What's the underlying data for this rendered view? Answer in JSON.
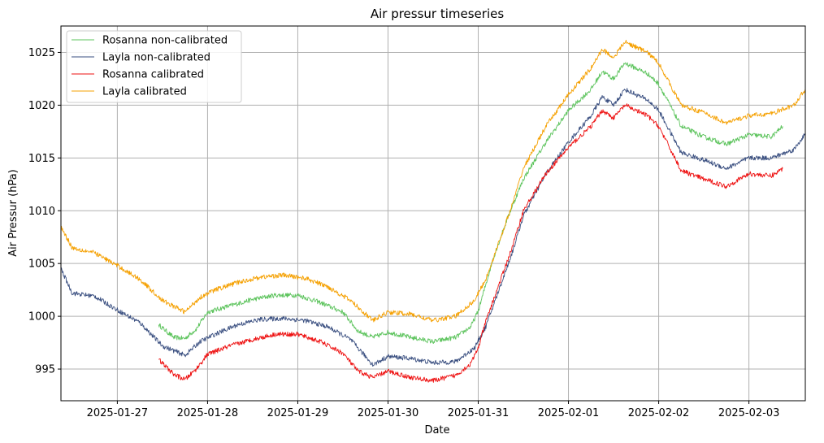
{
  "chart_data": {
    "type": "line",
    "title": "Air pressur timeseries",
    "xlabel": "Date",
    "ylabel": "Air Pressur (hPa)",
    "xlim": [
      "2025-01-26 09:00",
      "2025-02-03 15:00"
    ],
    "ylim": [
      992,
      1027.5
    ],
    "xticks": [
      "2025-01-27",
      "2025-01-28",
      "2025-01-29",
      "2025-01-30",
      "2025-01-31",
      "2025-02-01",
      "2025-02-02",
      "2025-02-03"
    ],
    "yticks": [
      995,
      1000,
      1005,
      1010,
      1015,
      1020,
      1025
    ],
    "grid": true,
    "legend_position": "top-left",
    "series": [
      {
        "name": "Rosanna non-calibrated",
        "color": "#5ec45e",
        "points": [
          [
            "2025-01-27 11:00",
            999.2
          ],
          [
            "2025-01-27 15:00",
            998.0
          ],
          [
            "2025-01-27 18:00",
            997.9
          ],
          [
            "2025-01-27 21:00",
            998.8
          ],
          [
            "2025-01-28 00:00",
            1000.4
          ],
          [
            "2025-01-28 06:00",
            1001.0
          ],
          [
            "2025-01-28 12:00",
            1001.6
          ],
          [
            "2025-01-28 18:00",
            1002.0
          ],
          [
            "2025-01-29 00:00",
            1002.0
          ],
          [
            "2025-01-29 06:00",
            1001.3
          ],
          [
            "2025-01-29 12:00",
            1000.4
          ],
          [
            "2025-01-29 16:00",
            998.6
          ],
          [
            "2025-01-29 20:00",
            998.0
          ],
          [
            "2025-01-30 00:00",
            998.5
          ],
          [
            "2025-01-30 06:00",
            998.0
          ],
          [
            "2025-01-30 12:00",
            997.6
          ],
          [
            "2025-01-30 18:00",
            998.0
          ],
          [
            "2025-01-30 22:00",
            999.0
          ],
          [
            "2025-01-31 00:00",
            1000.5
          ],
          [
            "2025-01-31 02:00",
            1003.0
          ],
          [
            "2025-01-31 04:00",
            1005.5
          ],
          [
            "2025-01-31 08:00",
            1009.5
          ],
          [
            "2025-01-31 12:00",
            1013.0
          ],
          [
            "2025-01-31 18:00",
            1016.5
          ],
          [
            "2025-02-01 00:00",
            1019.5
          ],
          [
            "2025-02-01 06:00",
            1021.5
          ],
          [
            "2025-02-01 09:00",
            1023.2
          ],
          [
            "2025-02-01 12:00",
            1022.5
          ],
          [
            "2025-02-01 15:00",
            1024.0
          ],
          [
            "2025-02-01 21:00",
            1023.0
          ],
          [
            "2025-02-02 00:00",
            1022.0
          ],
          [
            "2025-02-02 06:00",
            1018.0
          ],
          [
            "2025-02-02 12:00",
            1017.0
          ],
          [
            "2025-02-02 18:00",
            1016.3
          ],
          [
            "2025-02-03 00:00",
            1017.2
          ],
          [
            "2025-02-03 06:00",
            1017.0
          ],
          [
            "2025-02-03 09:00",
            1018.0
          ]
        ]
      },
      {
        "name": "Layla non-calibrated",
        "color": "#3a4f80",
        "points": [
          [
            "2025-01-26 09:00",
            1004.5
          ],
          [
            "2025-01-26 12:00",
            1002.2
          ],
          [
            "2025-01-26 18:00",
            1001.9
          ],
          [
            "2025-01-27 00:00",
            1000.6
          ],
          [
            "2025-01-27 06:00",
            999.4
          ],
          [
            "2025-01-27 12:00",
            997.2
          ],
          [
            "2025-01-27 18:00",
            996.3
          ],
          [
            "2025-01-27 22:00",
            997.6
          ],
          [
            "2025-01-28 02:00",
            998.3
          ],
          [
            "2025-01-28 08:00",
            999.2
          ],
          [
            "2025-01-28 14:00",
            999.7
          ],
          [
            "2025-01-28 20:00",
            999.8
          ],
          [
            "2025-01-29 02:00",
            999.6
          ],
          [
            "2025-01-29 08:00",
            999.0
          ],
          [
            "2025-01-29 14:00",
            997.8
          ],
          [
            "2025-01-29 20:00",
            995.4
          ],
          [
            "2025-01-30 00:00",
            996.2
          ],
          [
            "2025-01-30 06:00",
            996.0
          ],
          [
            "2025-01-30 12:00",
            995.6
          ],
          [
            "2025-01-30 18:00",
            995.7
          ],
          [
            "2025-01-30 23:00",
            997.0
          ],
          [
            "2025-01-31 02:00",
            999.0
          ],
          [
            "2025-01-31 05:00",
            1002.0
          ],
          [
            "2025-01-31 09:00",
            1006.0
          ],
          [
            "2025-01-31 12:00",
            1009.5
          ],
          [
            "2025-01-31 18:00",
            1013.5
          ],
          [
            "2025-02-01 00:00",
            1016.5
          ],
          [
            "2025-02-01 06:00",
            1019.0
          ],
          [
            "2025-02-01 09:00",
            1020.8
          ],
          [
            "2025-02-01 12:00",
            1020.0
          ],
          [
            "2025-02-01 15:00",
            1021.5
          ],
          [
            "2025-02-01 21:00",
            1020.5
          ],
          [
            "2025-02-02 00:00",
            1019.5
          ],
          [
            "2025-02-02 06:00",
            1015.5
          ],
          [
            "2025-02-02 12:00",
            1014.8
          ],
          [
            "2025-02-02 18:00",
            1014.0
          ],
          [
            "2025-02-03 00:00",
            1015.0
          ],
          [
            "2025-02-03 06:00",
            1015.0
          ],
          [
            "2025-02-03 12:00",
            1015.8
          ],
          [
            "2025-02-03 15:00",
            1017.3
          ]
        ]
      },
      {
        "name": "Rosanna calibrated",
        "color": "#ee1111",
        "points": [
          [
            "2025-01-27 11:00",
            995.9
          ],
          [
            "2025-01-27 15:00",
            994.5
          ],
          [
            "2025-01-27 18:00",
            994.0
          ],
          [
            "2025-01-27 21:00",
            995.0
          ],
          [
            "2025-01-28 00:00",
            996.4
          ],
          [
            "2025-01-28 06:00",
            997.2
          ],
          [
            "2025-01-28 12:00",
            997.8
          ],
          [
            "2025-01-28 18:00",
            998.3
          ],
          [
            "2025-01-29 00:00",
            998.3
          ],
          [
            "2025-01-29 06:00",
            997.6
          ],
          [
            "2025-01-29 12:00",
            996.5
          ],
          [
            "2025-01-29 16:00",
            994.8
          ],
          [
            "2025-01-29 20:00",
            994.2
          ],
          [
            "2025-01-30 00:00",
            994.8
          ],
          [
            "2025-01-30 06:00",
            994.2
          ],
          [
            "2025-01-30 12:00",
            993.9
          ],
          [
            "2025-01-30 18:00",
            994.4
          ],
          [
            "2025-01-30 22:00",
            995.5
          ],
          [
            "2025-01-31 00:00",
            997.0
          ],
          [
            "2025-01-31 02:00",
            999.5
          ],
          [
            "2025-01-31 05:00",
            1002.5
          ],
          [
            "2025-01-31 09:00",
            1006.5
          ],
          [
            "2025-01-31 12:00",
            1010.0
          ],
          [
            "2025-01-31 18:00",
            1013.5
          ],
          [
            "2025-02-01 00:00",
            1016.0
          ],
          [
            "2025-02-01 06:00",
            1018.0
          ],
          [
            "2025-02-01 09:00",
            1019.5
          ],
          [
            "2025-02-01 12:00",
            1018.8
          ],
          [
            "2025-02-01 15:00",
            1020.0
          ],
          [
            "2025-02-01 21:00",
            1019.0
          ],
          [
            "2025-02-02 00:00",
            1018.0
          ],
          [
            "2025-02-02 06:00",
            1013.8
          ],
          [
            "2025-02-02 12:00",
            1013.0
          ],
          [
            "2025-02-02 18:00",
            1012.3
          ],
          [
            "2025-02-03 00:00",
            1013.5
          ],
          [
            "2025-02-03 06:00",
            1013.3
          ],
          [
            "2025-02-03 09:00",
            1014.0
          ]
        ]
      },
      {
        "name": "Layla calibrated",
        "color": "#f5a000",
        "points": [
          [
            "2025-01-26 09:00",
            1008.5
          ],
          [
            "2025-01-26 12:00",
            1006.5
          ],
          [
            "2025-01-26 18:00",
            1006.0
          ],
          [
            "2025-01-27 00:00",
            1004.8
          ],
          [
            "2025-01-27 06:00",
            1003.5
          ],
          [
            "2025-01-27 12:00",
            1001.5
          ],
          [
            "2025-01-27 18:00",
            1000.4
          ],
          [
            "2025-01-27 22:00",
            1001.8
          ],
          [
            "2025-01-28 02:00",
            1002.5
          ],
          [
            "2025-01-28 08:00",
            1003.2
          ],
          [
            "2025-01-28 14:00",
            1003.7
          ],
          [
            "2025-01-28 20:00",
            1003.9
          ],
          [
            "2025-01-29 02:00",
            1003.6
          ],
          [
            "2025-01-29 08:00",
            1002.8
          ],
          [
            "2025-01-29 14:00",
            1001.5
          ],
          [
            "2025-01-29 20:00",
            999.6
          ],
          [
            "2025-01-30 00:00",
            1000.4
          ],
          [
            "2025-01-30 06:00",
            1000.2
          ],
          [
            "2025-01-30 12:00",
            999.6
          ],
          [
            "2025-01-30 18:00",
            1000.0
          ],
          [
            "2025-01-30 23:00",
            1001.5
          ],
          [
            "2025-01-31 02:00",
            1003.5
          ],
          [
            "2025-01-31 05:00",
            1006.5
          ],
          [
            "2025-01-31 09:00",
            1010.5
          ],
          [
            "2025-01-31 12:00",
            1014.0
          ],
          [
            "2025-01-31 18:00",
            1018.0
          ],
          [
            "2025-02-01 00:00",
            1021.0
          ],
          [
            "2025-02-01 06:00",
            1023.5
          ],
          [
            "2025-02-01 09:00",
            1025.3
          ],
          [
            "2025-02-01 12:00",
            1024.5
          ],
          [
            "2025-02-01 15:00",
            1026.0
          ],
          [
            "2025-02-01 21:00",
            1025.0
          ],
          [
            "2025-02-02 00:00",
            1024.0
          ],
          [
            "2025-02-02 06:00",
            1020.0
          ],
          [
            "2025-02-02 12:00",
            1019.3
          ],
          [
            "2025-02-02 18:00",
            1018.3
          ],
          [
            "2025-02-03 00:00",
            1019.0
          ],
          [
            "2025-02-03 06:00",
            1019.2
          ],
          [
            "2025-02-03 12:00",
            1020.0
          ],
          [
            "2025-02-03 15:00",
            1021.5
          ]
        ]
      }
    ]
  }
}
